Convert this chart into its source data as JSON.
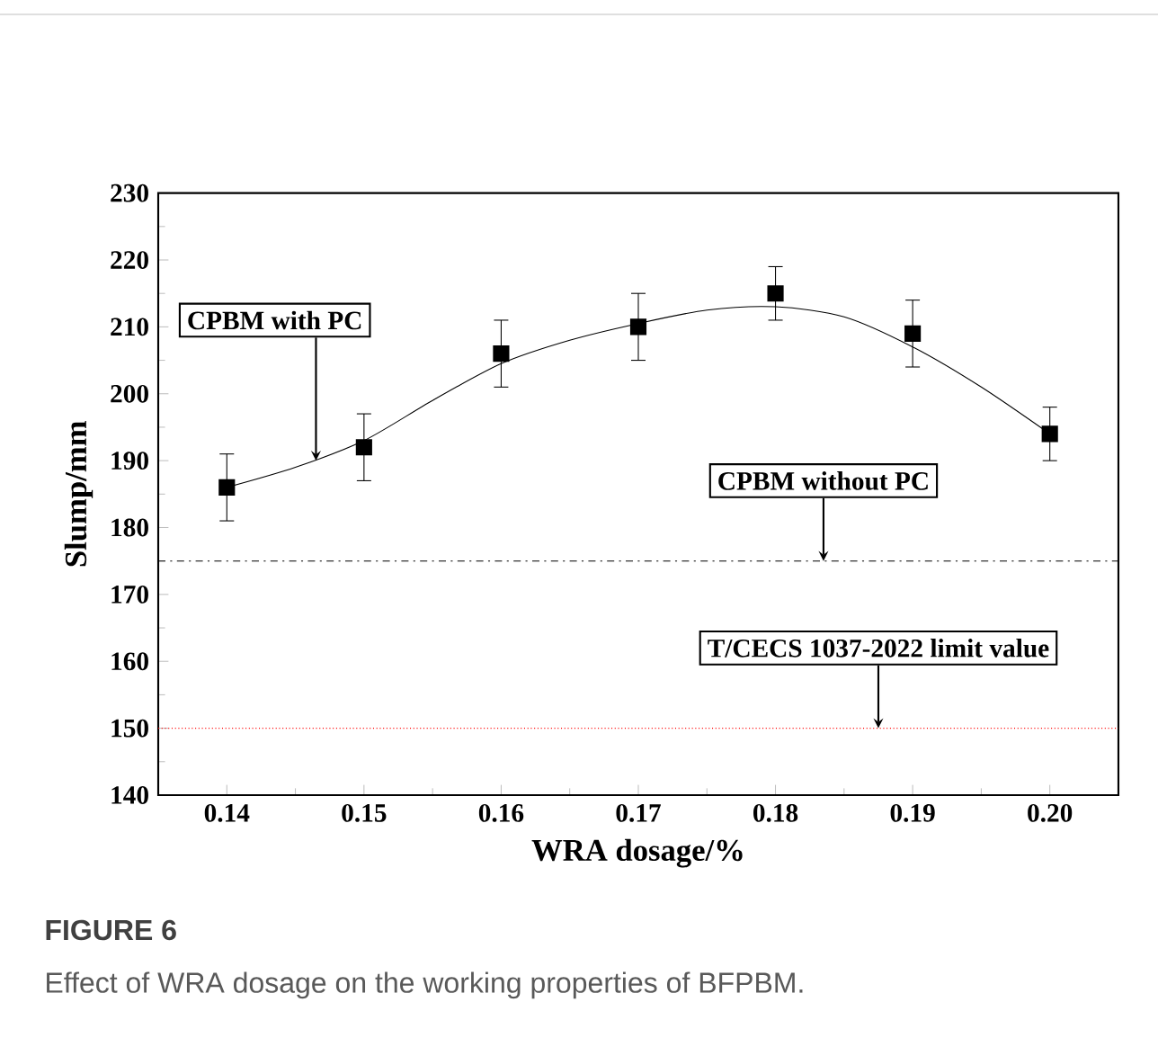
{
  "chart_data": {
    "type": "scatter",
    "xlabel": "WRA dosage/%",
    "ylabel": "Slump/mm",
    "xlim": [
      0.135,
      0.205
    ],
    "xticks": [
      0.14,
      0.15,
      0.16,
      0.17,
      0.18,
      0.19,
      {
        "value": 0.2,
        "label": "0.20"
      }
    ],
    "ylim": [
      140,
      230
    ],
    "yticks": [
      140,
      150,
      160,
      170,
      180,
      190,
      200,
      210,
      220,
      230
    ],
    "grid": false,
    "x": [
      0.14,
      0.15,
      0.16,
      0.17,
      0.18,
      0.19,
      0.2
    ],
    "series": [
      {
        "color": "#000000",
        "marker": "square",
        "values": [
          186,
          192,
          206,
          210,
          215,
          209,
          194
        ],
        "errors": [
          5,
          5,
          5,
          5,
          4,
          5,
          4
        ]
      },
      {
        "type": "line",
        "color": "#000000",
        "marker": "none",
        "line_style": "solid",
        "x": [
          0.14,
          0.145,
          0.15,
          0.155,
          0.16,
          0.165,
          0.17,
          0.175,
          0.18,
          0.185,
          0.19,
          0.195,
          0.2
        ],
        "values": [
          186,
          189,
          193,
          199,
          204.5,
          208,
          210.5,
          212.5,
          213,
          211.5,
          207,
          201,
          194
        ]
      }
    ],
    "ref_lines": [
      {
        "axis": "y",
        "value": 175,
        "label": "CPBM without PC",
        "color": "#000000",
        "line_style": "dashdot"
      },
      {
        "axis": "y",
        "value": 150,
        "label": "T/CECS 1037-2022  limit value",
        "color": "#ff0000",
        "line_style": "dotted"
      }
    ],
    "annotations": [
      {
        "text": "CPBM with PC",
        "x": 0.1465,
        "y": 190
      },
      "FIGURE 6",
      "Effect of WRA dosage on the working properties of BFPBM."
    ]
  }
}
